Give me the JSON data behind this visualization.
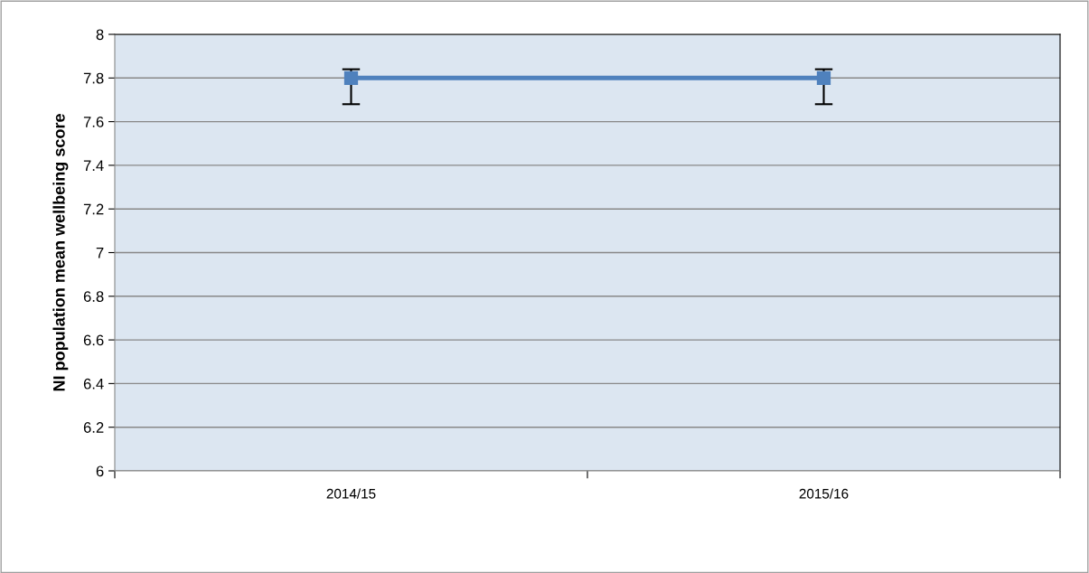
{
  "chart_data": {
    "type": "line",
    "ylabel": "NI population mean wellbeing score",
    "categories": [
      "2014/15",
      "2015/16"
    ],
    "series": [
      {
        "color": "#4f81bd",
        "values": [
          7.8,
          7.8
        ],
        "errors": [
          [
            7.68,
            7.84
          ],
          [
            7.68,
            7.84
          ]
        ]
      }
    ],
    "ylim": [
      6,
      8
    ],
    "yticks": [
      6,
      {
        "value": 6.2,
        "label": "6.2"
      },
      {
        "value": 6.4,
        "label": "6.4"
      },
      {
        "value": 6.6,
        "label": "6.6"
      },
      {
        "value": 6.8,
        "label": "6.8"
      },
      7,
      {
        "value": 7.2,
        "label": "7.2"
      },
      {
        "value": 7.4,
        "label": "7.4"
      },
      {
        "value": 7.6,
        "label": "7.6"
      },
      {
        "value": 7.8,
        "label": "7.8"
      },
      8
    ],
    "grid": "y",
    "marker": "square",
    "line_style": "solid",
    "legend": false
  }
}
